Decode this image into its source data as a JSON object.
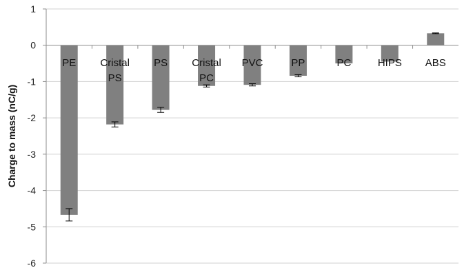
{
  "chart_data": {
    "type": "bar",
    "categories": [
      [
        "PE"
      ],
      [
        "Cristal",
        "PS"
      ],
      [
        "PS"
      ],
      [
        "Cristal",
        "PC"
      ],
      [
        "PVC"
      ],
      [
        "PP"
      ],
      [
        "PC"
      ],
      [
        "HIPS"
      ],
      [
        "ABS"
      ]
    ],
    "values": [
      -4.67,
      -2.18,
      -1.78,
      -1.12,
      -1.09,
      -0.84,
      -0.5,
      -0.45,
      0.33
    ],
    "errors": [
      0.17,
      0.07,
      0.07,
      0.03,
      0.03,
      0.03,
      0,
      0,
      0.01
    ],
    "ylabel": "Charge to mass (nC/g)",
    "ylim": [
      -6,
      1
    ],
    "yticks": [
      1,
      0,
      -1,
      -2,
      -3,
      -4,
      -5,
      -6
    ],
    "grid": true,
    "bar_color": "#808080",
    "grid_color": "#d0d0d0",
    "axis_color": "#8c8c8c"
  }
}
